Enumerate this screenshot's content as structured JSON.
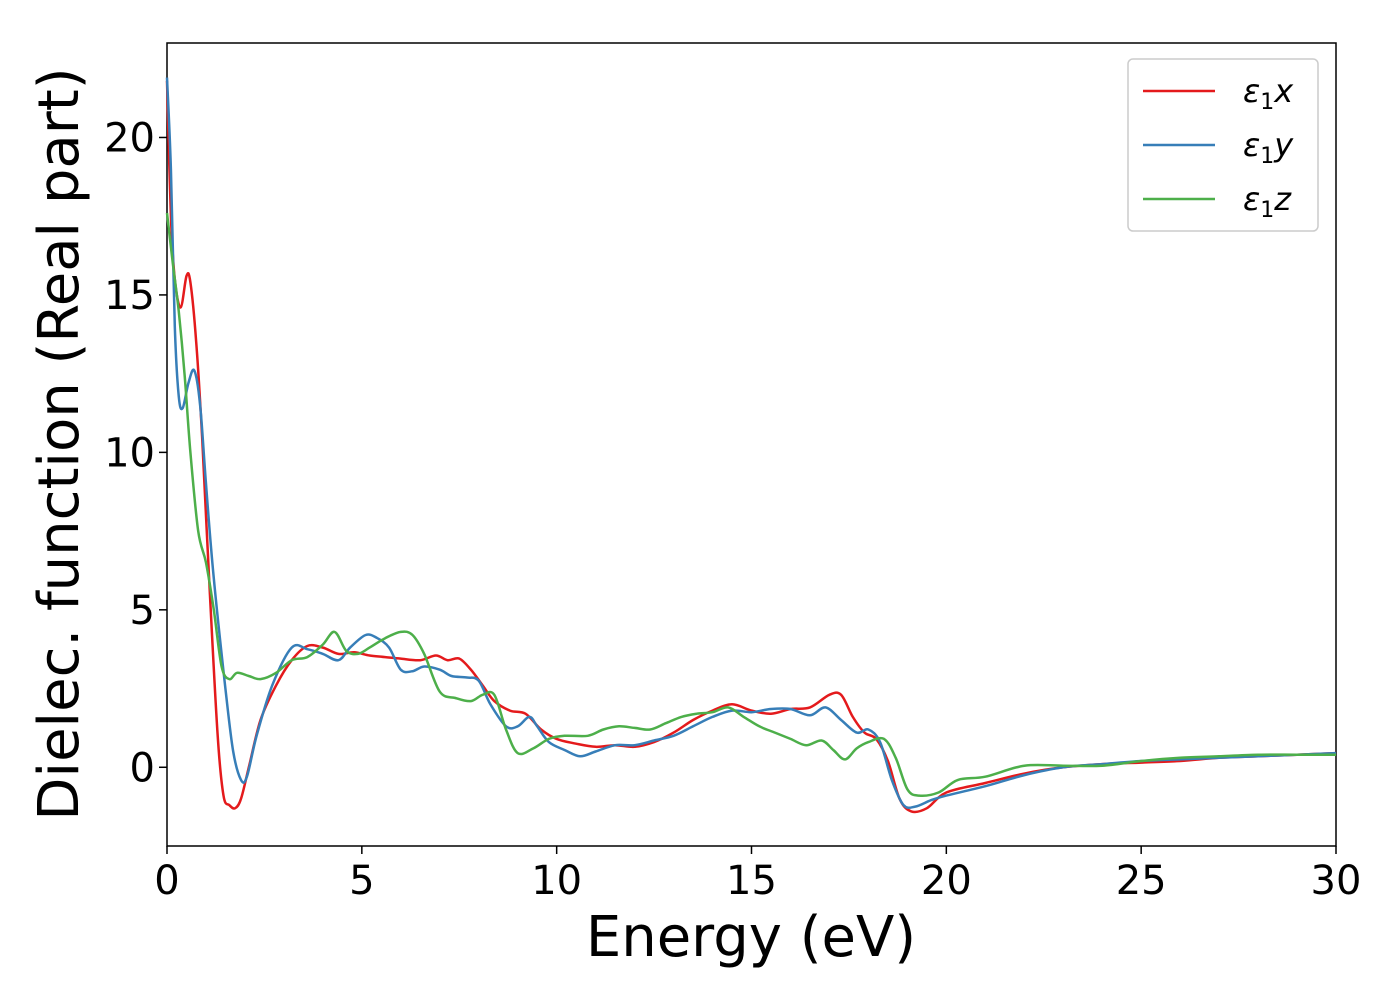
{
  "chart_data": {
    "type": "line",
    "xlabel": "Energy (eV)",
    "ylabel": "Dielec. function (Real part)",
    "xlim": [
      0,
      30
    ],
    "ylim": [
      -2.5,
      23
    ],
    "xticks": [
      0,
      5,
      10,
      15,
      20,
      25,
      30
    ],
    "yticks": [
      0,
      5,
      10,
      15,
      20
    ],
    "grid": false,
    "legend_position": "top-right",
    "series": [
      {
        "name": "ε1x",
        "label_main": "ε",
        "label_sub": "1",
        "label_tail": "x",
        "color": "#e41a1c",
        "points": [
          [
            0.0,
            21.8
          ],
          [
            0.1,
            17.5
          ],
          [
            0.2,
            15.5
          ],
          [
            0.35,
            14.6
          ],
          [
            0.5,
            15.6
          ],
          [
            0.6,
            15.4
          ],
          [
            0.75,
            13.5
          ],
          [
            0.9,
            10.5
          ],
          [
            1.1,
            5.5
          ],
          [
            1.3,
            1.0
          ],
          [
            1.45,
            -0.9
          ],
          [
            1.6,
            -1.2
          ],
          [
            1.75,
            -1.3
          ],
          [
            1.9,
            -1.0
          ],
          [
            2.1,
            0.0
          ],
          [
            2.4,
            1.5
          ],
          [
            2.8,
            2.6
          ],
          [
            3.2,
            3.4
          ],
          [
            3.6,
            3.85
          ],
          [
            4.0,
            3.8
          ],
          [
            4.4,
            3.6
          ],
          [
            4.8,
            3.65
          ],
          [
            5.2,
            3.55
          ],
          [
            5.6,
            3.5
          ],
          [
            6.0,
            3.45
          ],
          [
            6.5,
            3.4
          ],
          [
            6.9,
            3.55
          ],
          [
            7.2,
            3.4
          ],
          [
            7.5,
            3.45
          ],
          [
            7.8,
            3.1
          ],
          [
            8.1,
            2.6
          ],
          [
            8.4,
            2.1
          ],
          [
            8.8,
            1.8
          ],
          [
            9.2,
            1.7
          ],
          [
            9.6,
            1.2
          ],
          [
            10.0,
            0.9
          ],
          [
            10.5,
            0.75
          ],
          [
            11.0,
            0.65
          ],
          [
            11.5,
            0.7
          ],
          [
            12.0,
            0.65
          ],
          [
            12.5,
            0.8
          ],
          [
            13.0,
            1.1
          ],
          [
            13.5,
            1.5
          ],
          [
            14.0,
            1.8
          ],
          [
            14.5,
            2.0
          ],
          [
            15.0,
            1.8
          ],
          [
            15.5,
            1.7
          ],
          [
            16.0,
            1.85
          ],
          [
            16.5,
            1.9
          ],
          [
            17.0,
            2.3
          ],
          [
            17.3,
            2.3
          ],
          [
            17.6,
            1.6
          ],
          [
            17.9,
            1.1
          ],
          [
            18.2,
            0.9
          ],
          [
            18.5,
            0.2
          ],
          [
            18.8,
            -1.0
          ],
          [
            19.1,
            -1.4
          ],
          [
            19.5,
            -1.3
          ],
          [
            20.0,
            -0.8
          ],
          [
            21.0,
            -0.5
          ],
          [
            22.0,
            -0.2
          ],
          [
            23.0,
            0.0
          ],
          [
            24.0,
            0.1
          ],
          [
            25.0,
            0.15
          ],
          [
            26.0,
            0.2
          ],
          [
            27.0,
            0.3
          ],
          [
            28.0,
            0.35
          ],
          [
            29.0,
            0.4
          ],
          [
            30.0,
            0.45
          ]
        ]
      },
      {
        "name": "ε1y",
        "label_main": "ε",
        "label_sub": "1",
        "label_tail": "y",
        "color": "#377eb8",
        "points": [
          [
            0.0,
            21.9
          ],
          [
            0.1,
            19.0
          ],
          [
            0.2,
            14.0
          ],
          [
            0.3,
            11.8
          ],
          [
            0.4,
            11.4
          ],
          [
            0.55,
            12.2
          ],
          [
            0.7,
            12.6
          ],
          [
            0.85,
            11.5
          ],
          [
            1.0,
            9.0
          ],
          [
            1.2,
            6.0
          ],
          [
            1.5,
            2.5
          ],
          [
            1.7,
            0.5
          ],
          [
            1.9,
            -0.4
          ],
          [
            2.05,
            -0.3
          ],
          [
            2.3,
            1.0
          ],
          [
            2.7,
            2.6
          ],
          [
            3.2,
            3.8
          ],
          [
            3.6,
            3.75
          ],
          [
            4.0,
            3.6
          ],
          [
            4.4,
            3.4
          ],
          [
            4.7,
            3.8
          ],
          [
            5.1,
            4.2
          ],
          [
            5.4,
            4.1
          ],
          [
            5.7,
            3.8
          ],
          [
            6.0,
            3.1
          ],
          [
            6.3,
            3.05
          ],
          [
            6.6,
            3.2
          ],
          [
            7.0,
            3.1
          ],
          [
            7.3,
            2.9
          ],
          [
            7.7,
            2.85
          ],
          [
            8.0,
            2.75
          ],
          [
            8.3,
            2.0
          ],
          [
            8.7,
            1.3
          ],
          [
            9.0,
            1.3
          ],
          [
            9.3,
            1.6
          ],
          [
            9.5,
            1.3
          ],
          [
            9.8,
            0.8
          ],
          [
            10.2,
            0.55
          ],
          [
            10.6,
            0.35
          ],
          [
            11.0,
            0.5
          ],
          [
            11.5,
            0.7
          ],
          [
            12.0,
            0.7
          ],
          [
            12.5,
            0.85
          ],
          [
            13.0,
            1.0
          ],
          [
            13.5,
            1.3
          ],
          [
            14.0,
            1.6
          ],
          [
            14.5,
            1.8
          ],
          [
            15.0,
            1.75
          ],
          [
            15.5,
            1.85
          ],
          [
            16.0,
            1.85
          ],
          [
            16.5,
            1.65
          ],
          [
            16.9,
            1.9
          ],
          [
            17.3,
            1.5
          ],
          [
            17.7,
            1.1
          ],
          [
            18.0,
            1.2
          ],
          [
            18.3,
            0.8
          ],
          [
            18.6,
            -0.4
          ],
          [
            18.9,
            -1.2
          ],
          [
            19.2,
            -1.25
          ],
          [
            19.6,
            -1.05
          ],
          [
            20.0,
            -0.9
          ],
          [
            21.0,
            -0.6
          ],
          [
            22.0,
            -0.25
          ],
          [
            23.0,
            0.0
          ],
          [
            24.0,
            0.1
          ],
          [
            25.0,
            0.2
          ],
          [
            26.0,
            0.25
          ],
          [
            27.0,
            0.3
          ],
          [
            28.0,
            0.35
          ],
          [
            29.0,
            0.4
          ],
          [
            30.0,
            0.45
          ]
        ]
      },
      {
        "name": "ε1z",
        "label_main": "ε",
        "label_sub": "1",
        "label_tail": "z",
        "color": "#4daf4a",
        "points": [
          [
            0.0,
            17.6
          ],
          [
            0.15,
            16.0
          ],
          [
            0.3,
            14.5
          ],
          [
            0.45,
            12.5
          ],
          [
            0.6,
            10.0
          ],
          [
            0.8,
            7.5
          ],
          [
            1.0,
            6.5
          ],
          [
            1.2,
            5.0
          ],
          [
            1.4,
            3.2
          ],
          [
            1.6,
            2.8
          ],
          [
            1.8,
            3.0
          ],
          [
            2.1,
            2.9
          ],
          [
            2.4,
            2.8
          ],
          [
            2.8,
            3.0
          ],
          [
            3.2,
            3.4
          ],
          [
            3.6,
            3.5
          ],
          [
            4.0,
            3.9
          ],
          [
            4.3,
            4.3
          ],
          [
            4.6,
            3.7
          ],
          [
            4.9,
            3.6
          ],
          [
            5.2,
            3.8
          ],
          [
            5.6,
            4.1
          ],
          [
            6.0,
            4.3
          ],
          [
            6.3,
            4.2
          ],
          [
            6.6,
            3.6
          ],
          [
            7.0,
            2.4
          ],
          [
            7.4,
            2.2
          ],
          [
            7.8,
            2.1
          ],
          [
            8.1,
            2.3
          ],
          [
            8.4,
            2.3
          ],
          [
            8.7,
            1.2
          ],
          [
            9.0,
            0.45
          ],
          [
            9.4,
            0.6
          ],
          [
            9.8,
            0.9
          ],
          [
            10.2,
            1.0
          ],
          [
            10.8,
            1.0
          ],
          [
            11.2,
            1.2
          ],
          [
            11.6,
            1.3
          ],
          [
            12.0,
            1.25
          ],
          [
            12.4,
            1.2
          ],
          [
            12.8,
            1.4
          ],
          [
            13.2,
            1.6
          ],
          [
            13.6,
            1.7
          ],
          [
            14.0,
            1.75
          ],
          [
            14.4,
            1.9
          ],
          [
            14.8,
            1.6
          ],
          [
            15.2,
            1.3
          ],
          [
            15.6,
            1.1
          ],
          [
            16.0,
            0.9
          ],
          [
            16.4,
            0.7
          ],
          [
            16.8,
            0.85
          ],
          [
            17.1,
            0.55
          ],
          [
            17.4,
            0.25
          ],
          [
            17.7,
            0.6
          ],
          [
            18.0,
            0.8
          ],
          [
            18.4,
            0.9
          ],
          [
            18.7,
            0.3
          ],
          [
            19.0,
            -0.7
          ],
          [
            19.3,
            -0.9
          ],
          [
            19.8,
            -0.8
          ],
          [
            20.3,
            -0.4
          ],
          [
            21.0,
            -0.3
          ],
          [
            22.0,
            0.05
          ],
          [
            23.0,
            0.05
          ],
          [
            24.0,
            0.05
          ],
          [
            25.0,
            0.2
          ],
          [
            26.0,
            0.3
          ],
          [
            27.0,
            0.35
          ],
          [
            28.0,
            0.4
          ],
          [
            29.0,
            0.4
          ],
          [
            30.0,
            0.4
          ]
        ]
      }
    ]
  }
}
